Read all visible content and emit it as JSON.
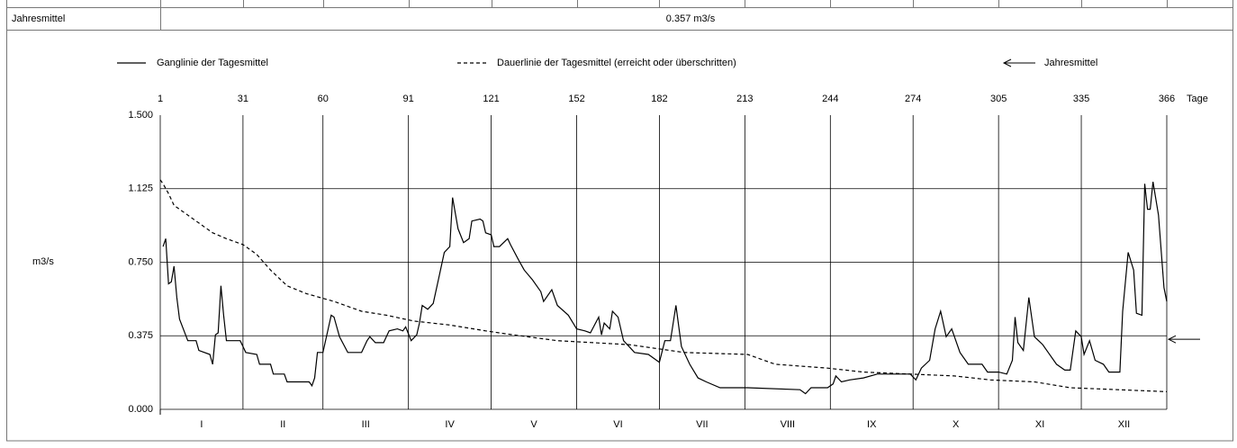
{
  "table": {
    "rows": [
      [
        "Jahresmittel",
        "0.357 m3/s"
      ]
    ]
  },
  "chart_data": {
    "type": "line",
    "y_label": "m3/s",
    "x_unit": "Tage",
    "xlim": [
      1,
      366
    ],
    "xticks": [
      1,
      31,
      60,
      91,
      121,
      152,
      182,
      213,
      244,
      274,
      305,
      335,
      366
    ],
    "ylim": [
      0,
      1.5
    ],
    "yticks": [
      {
        "value": 0,
        "label": "0.000"
      },
      0.375,
      {
        "value": 0.75,
        "label": "0.750"
      },
      1.125,
      {
        "value": 1.5,
        "label": "1.500"
      }
    ],
    "grid": true,
    "month_labels": [
      "I",
      "II",
      "III",
      "IV",
      "V",
      "VI",
      "VII",
      "VIII",
      "IX",
      "X",
      "XI",
      "XII"
    ],
    "annual_mean": {
      "name": "Jahresmittel",
      "value": 0.357
    },
    "series": [
      {
        "name": "Ganglinie der Tagesmittel",
        "color": "#000000",
        "dashed": false,
        "x": [
          2,
          3,
          4,
          5,
          6,
          7,
          8,
          11,
          14,
          15,
          19,
          20,
          21,
          22,
          23,
          24,
          25,
          30,
          32,
          36,
          37,
          41,
          42,
          46,
          47,
          55,
          56,
          57,
          58,
          60,
          63,
          64,
          66,
          69,
          74,
          76,
          77,
          79,
          82,
          84,
          87,
          89,
          90,
          92,
          94,
          95,
          96,
          98,
          100,
          102,
          104,
          106,
          107,
          109,
          111,
          113,
          114,
          117,
          118,
          119,
          121,
          122,
          124,
          127,
          128,
          131,
          133,
          136,
          139,
          140,
          143,
          145,
          149,
          152,
          155,
          157,
          160,
          161,
          162,
          164,
          165,
          167,
          169,
          171,
          173,
          178,
          182,
          184,
          186,
          188,
          190,
          193,
          196,
          199,
          204,
          214,
          233,
          235,
          237,
          243,
          245,
          246,
          248,
          251,
          256,
          261,
          266,
          273,
          275,
          277,
          280,
          282,
          284,
          286,
          288,
          291,
          294,
          299,
          301,
          305,
          308,
          310,
          311,
          312,
          314,
          316,
          318,
          321,
          323,
          326,
          329,
          331,
          333,
          335,
          336,
          338,
          340,
          343,
          345,
          349,
          350,
          352,
          354,
          355,
          357,
          358,
          359,
          360,
          361,
          363,
          365,
          366
        ],
        "values": [
          0.83,
          0.87,
          0.64,
          0.65,
          0.73,
          0.57,
          0.46,
          0.35,
          0.35,
          0.3,
          0.28,
          0.23,
          0.38,
          0.39,
          0.63,
          0.48,
          0.35,
          0.35,
          0.29,
          0.28,
          0.23,
          0.23,
          0.18,
          0.18,
          0.14,
          0.14,
          0.12,
          0.16,
          0.29,
          0.29,
          0.48,
          0.47,
          0.37,
          0.29,
          0.29,
          0.35,
          0.37,
          0.34,
          0.34,
          0.4,
          0.41,
          0.4,
          0.42,
          0.35,
          0.38,
          0.44,
          0.53,
          0.51,
          0.54,
          0.67,
          0.8,
          0.83,
          1.08,
          0.92,
          0.85,
          0.87,
          0.96,
          0.97,
          0.96,
          0.9,
          0.89,
          0.83,
          0.83,
          0.87,
          0.84,
          0.76,
          0.71,
          0.66,
          0.6,
          0.55,
          0.61,
          0.53,
          0.48,
          0.41,
          0.4,
          0.39,
          0.47,
          0.38,
          0.44,
          0.41,
          0.5,
          0.47,
          0.35,
          0.32,
          0.29,
          0.28,
          0.24,
          0.35,
          0.35,
          0.53,
          0.32,
          0.23,
          0.16,
          0.14,
          0.11,
          0.11,
          0.1,
          0.08,
          0.11,
          0.11,
          0.13,
          0.17,
          0.14,
          0.15,
          0.16,
          0.18,
          0.18,
          0.18,
          0.15,
          0.21,
          0.25,
          0.41,
          0.5,
          0.37,
          0.41,
          0.29,
          0.23,
          0.23,
          0.19,
          0.19,
          0.18,
          0.25,
          0.47,
          0.34,
          0.3,
          0.57,
          0.37,
          0.33,
          0.29,
          0.23,
          0.2,
          0.2,
          0.4,
          0.37,
          0.28,
          0.35,
          0.25,
          0.23,
          0.19,
          0.19,
          0.5,
          0.8,
          0.71,
          0.49,
          0.48,
          1.15,
          1.02,
          1.02,
          1.16,
          0.99,
          0.62,
          0.55
        ]
      },
      {
        "name": "Dauerlinie der Tagesmittel (erreicht oder überschritten)",
        "color": "#000000",
        "dashed": true,
        "x": [
          1,
          2,
          4,
          6,
          10,
          15,
          20,
          25,
          31,
          36,
          41,
          47,
          54,
          64,
          74,
          83,
          93,
          106,
          119,
          129,
          145,
          171,
          191,
          214,
          224,
          243,
          256,
          289,
          302,
          318,
          331,
          366
        ],
        "values": [
          1.17,
          1.15,
          1.1,
          1.04,
          1.0,
          0.95,
          0.9,
          0.87,
          0.84,
          0.79,
          0.71,
          0.63,
          0.59,
          0.55,
          0.5,
          0.48,
          0.45,
          0.43,
          0.4,
          0.38,
          0.35,
          0.33,
          0.29,
          0.28,
          0.23,
          0.21,
          0.19,
          0.17,
          0.15,
          0.14,
          0.11,
          0.09
        ]
      }
    ]
  }
}
